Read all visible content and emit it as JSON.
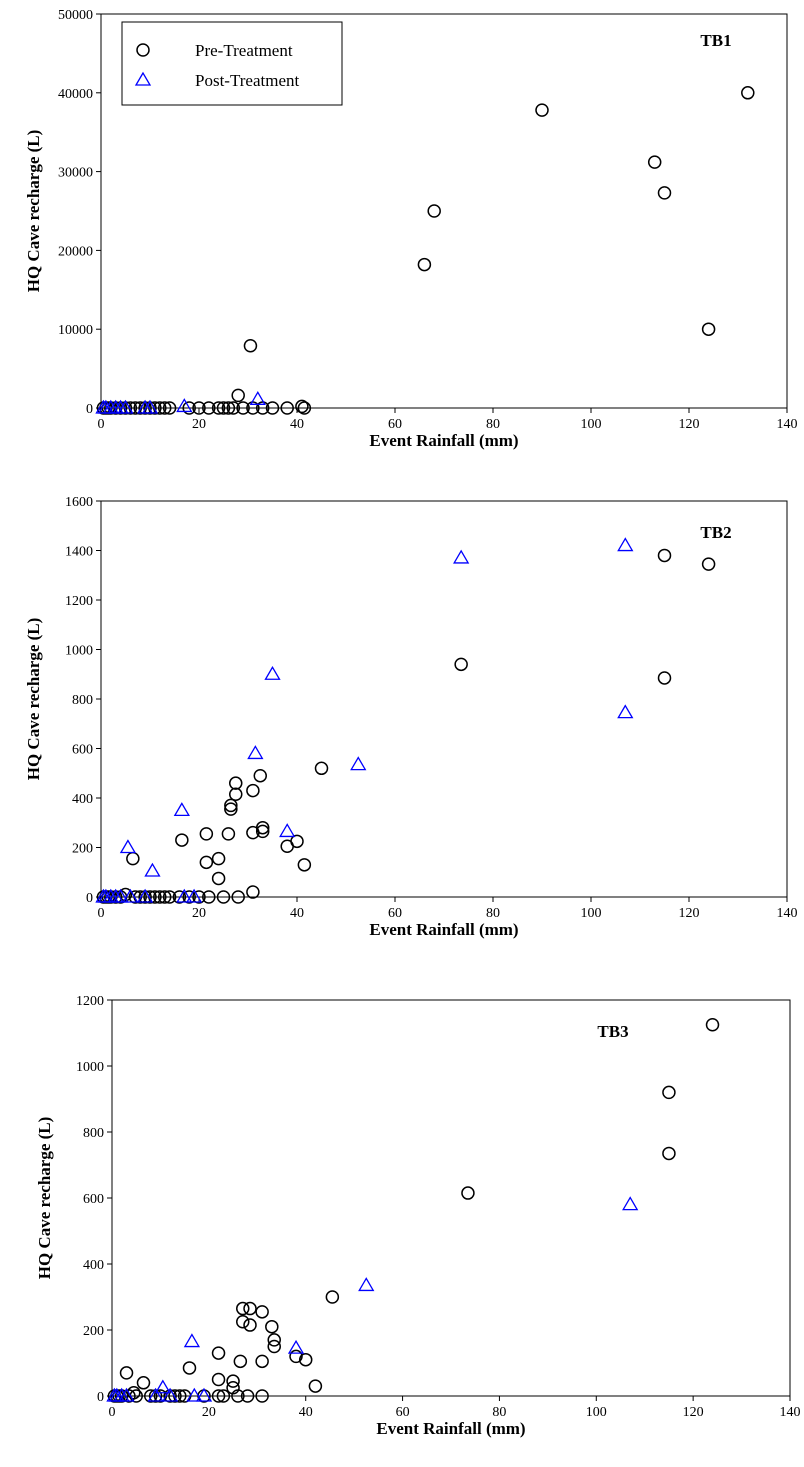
{
  "chart_data": [
    {
      "type": "scatter",
      "annotation": "TB1",
      "xlabel": "Event Rainfall (mm)",
      "ylabel": "HQ Cave recharge (L)",
      "xlim": [
        0,
        140
      ],
      "xticks": [
        0,
        20,
        40,
        60,
        80,
        100,
        120,
        140
      ],
      "ylim": [
        0,
        50000
      ],
      "yticks": [
        0,
        10000,
        20000,
        30000,
        40000,
        50000
      ],
      "legend": "upper left",
      "series": [
        {
          "name": "Pre-Treatment",
          "color": "#000000",
          "marker": "circle",
          "x": [
            66,
            68,
            90,
            113,
            115,
            124,
            132,
            30.5,
            28,
            41,
            0.5,
            1,
            1.5,
            2,
            3,
            4,
            5,
            6,
            7,
            8,
            9,
            10,
            11,
            12,
            13,
            14,
            18,
            20,
            22,
            24,
            25,
            26,
            27,
            29,
            31,
            33,
            35,
            38,
            41.5
          ],
          "values": [
            18200,
            25000,
            37800,
            31200,
            27300,
            10000,
            40000,
            7900,
            1600,
            200,
            0,
            0,
            0,
            0,
            0,
            0,
            0,
            0,
            0,
            0,
            0,
            0,
            0,
            0,
            0,
            0,
            0,
            0,
            0,
            0,
            0,
            0,
            0,
            0,
            0,
            0,
            0,
            0,
            0
          ]
        },
        {
          "name": "Post-Treatment",
          "color": "#0000ff",
          "marker": "triangle",
          "x": [
            32,
            17,
            0.5,
            1,
            2,
            3,
            4,
            5,
            9,
            10
          ],
          "values": [
            1100,
            200,
            0,
            0,
            0,
            0,
            0,
            0,
            0,
            0
          ]
        }
      ]
    },
    {
      "type": "scatter",
      "annotation": "TB2",
      "xlabel": "Event Rainfall (mm)",
      "ylabel": "HQ Cave recharge (L)",
      "xlim": [
        0,
        140
      ],
      "xticks": [
        0,
        20,
        40,
        60,
        80,
        100,
        120,
        140
      ],
      "ylim": [
        0,
        1600
      ],
      "yticks": [
        0,
        200,
        400,
        600,
        800,
        1000,
        1200,
        1400,
        1600
      ],
      "series": [
        {
          "color": "#000000",
          "marker": "circle",
          "x": [
            115,
            124,
            73.5,
            115,
            45,
            32.5,
            27.5,
            31,
            27.5,
            26.5,
            26.5,
            33,
            33,
            31,
            26,
            21.5,
            40,
            16.5,
            38,
            21.5,
            24,
            41.5,
            6.5,
            24,
            31,
            5,
            0.5,
            1,
            1.5,
            2,
            3,
            4,
            7,
            8,
            9,
            10,
            11,
            12,
            13,
            14,
            16,
            18,
            20,
            22,
            25,
            28
          ],
          "values": [
            1380,
            1345,
            940,
            885,
            520,
            490,
            460,
            430,
            415,
            370,
            355,
            280,
            265,
            260,
            255,
            255,
            225,
            230,
            205,
            140,
            155,
            130,
            155,
            75,
            20,
            10,
            0,
            0,
            0,
            0,
            0,
            0,
            0,
            0,
            0,
            0,
            0,
            0,
            0,
            0,
            0,
            0,
            0,
            0,
            0,
            0
          ]
        },
        {
          "color": "#0000ff",
          "marker": "triangle",
          "x": [
            107,
            73.5,
            35,
            107,
            31.5,
            52.5,
            16.5,
            38,
            5.5,
            10.5,
            0.5,
            1,
            2,
            3,
            4,
            6,
            9,
            17,
            19
          ],
          "values": [
            1420,
            1370,
            900,
            745,
            580,
            535,
            350,
            265,
            200,
            105,
            0,
            0,
            0,
            0,
            0,
            0,
            0,
            0,
            0
          ]
        }
      ]
    },
    {
      "type": "scatter",
      "annotation": "TB3",
      "xlabel": "Event Rainfall (mm)",
      "ylabel": "HQ Cave recharge (L)",
      "xlim": [
        0,
        140
      ],
      "xticks": [
        0,
        20,
        40,
        60,
        80,
        100,
        120,
        140
      ],
      "ylim": [
        0,
        1200
      ],
      "yticks": [
        0,
        200,
        400,
        600,
        800,
        1000,
        1200
      ],
      "series": [
        {
          "color": "#000000",
          "marker": "circle",
          "x": [
            124,
            115,
            115,
            73.5,
            45.5,
            27,
            28.5,
            31,
            27,
            28.5,
            33,
            33.5,
            33.5,
            38,
            40,
            31,
            26.5,
            16,
            22,
            3,
            6.5,
            25,
            22,
            25,
            42,
            4.5,
            22,
            23,
            28,
            31,
            26,
            0.5,
            1,
            1.5,
            2,
            3.5,
            5,
            8,
            9,
            10,
            12,
            13,
            14,
            15,
            19
          ],
          "values": [
            1125,
            920,
            735,
            615,
            300,
            265,
            265,
            255,
            225,
            215,
            210,
            170,
            150,
            120,
            110,
            105,
            105,
            85,
            130,
            70,
            40,
            45,
            50,
            25,
            30,
            10,
            0,
            0,
            0,
            0,
            0,
            0,
            0,
            0,
            0,
            0,
            0,
            0,
            0,
            0,
            0,
            0,
            0,
            0,
            0
          ]
        },
        {
          "color": "#0000ff",
          "marker": "triangle",
          "x": [
            107,
            52.5,
            16.5,
            38,
            10.5,
            0.5,
            1,
            2,
            3,
            9,
            12,
            17,
            19
          ],
          "values": [
            580,
            335,
            165,
            145,
            25,
            0,
            0,
            0,
            0,
            0,
            0,
            0,
            0
          ]
        }
      ]
    }
  ]
}
